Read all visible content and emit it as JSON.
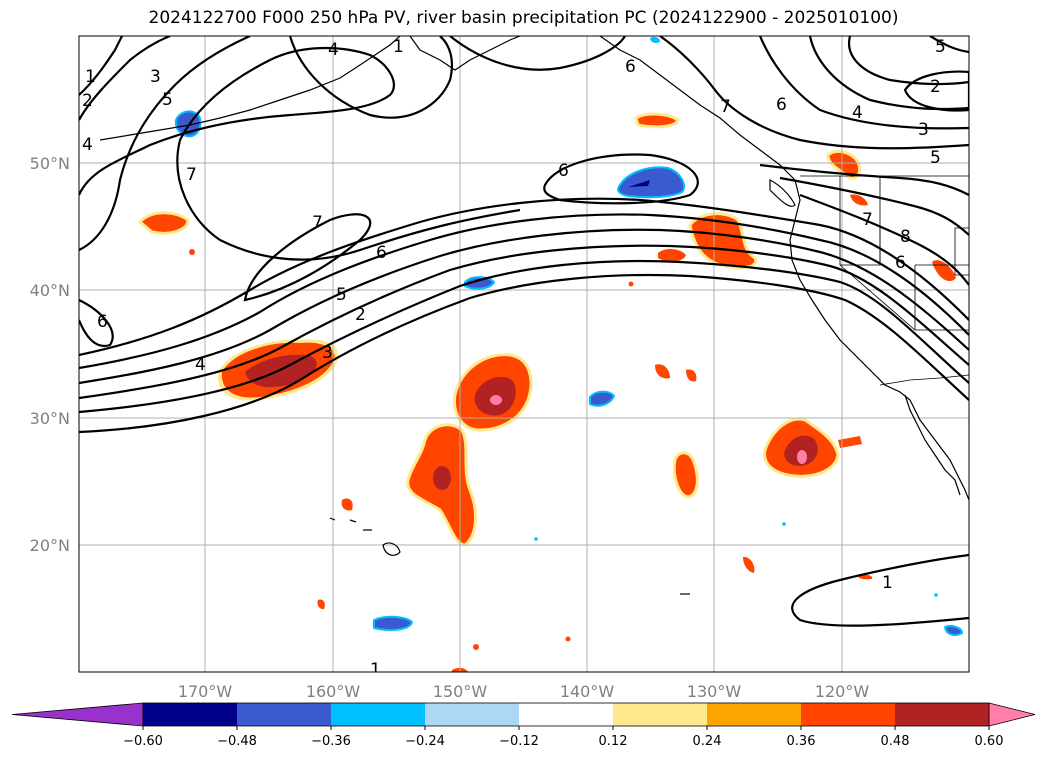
{
  "title": "2024122700 F000 250 hPa PV, river basin precipitation PC (2024122900 - 2025010100)",
  "map": {
    "lon_range": [
      -180,
      -110
    ],
    "lat_range": [
      10,
      60
    ],
    "lon_labels": [
      "170°W",
      "160°W",
      "150°W",
      "140°W",
      "130°W",
      "120°W"
    ],
    "lat_labels": [
      "50°N",
      "40°N",
      "30°N",
      "20°N"
    ],
    "pv_contour_labels": [
      "1",
      "2",
      "3",
      "4",
      "5",
      "6",
      "7",
      "8"
    ],
    "colors": {
      "pc_neg_060": "#9932cc",
      "pc_neg_048": "#00008b",
      "pc_neg_036": "#3a5bd0",
      "pc_neg_024": "#00bfff",
      "pc_neg_012": "#add8f5",
      "pc_pos_012": "#ffe98c",
      "pc_pos_024": "#ffa500",
      "pc_pos_036": "#ff4500",
      "pc_pos_048": "#b22222",
      "pc_pos_060": "#ff7fa8",
      "contour": "#000000",
      "gridline": "#b0b0b0"
    }
  },
  "colorbar": {
    "ticks": [
      "−0.60",
      "−0.48",
      "−0.36",
      "−0.24",
      "−0.12",
      "0.12",
      "0.24",
      "0.36",
      "0.48",
      "0.60"
    ],
    "colors": [
      "#9932cc",
      "#00008b",
      "#3a5bd0",
      "#00bfff",
      "#add8f5",
      "#ffffff",
      "#ffe98c",
      "#ffa500",
      "#ff4500",
      "#b22222",
      "#ff7fa8"
    ]
  }
}
